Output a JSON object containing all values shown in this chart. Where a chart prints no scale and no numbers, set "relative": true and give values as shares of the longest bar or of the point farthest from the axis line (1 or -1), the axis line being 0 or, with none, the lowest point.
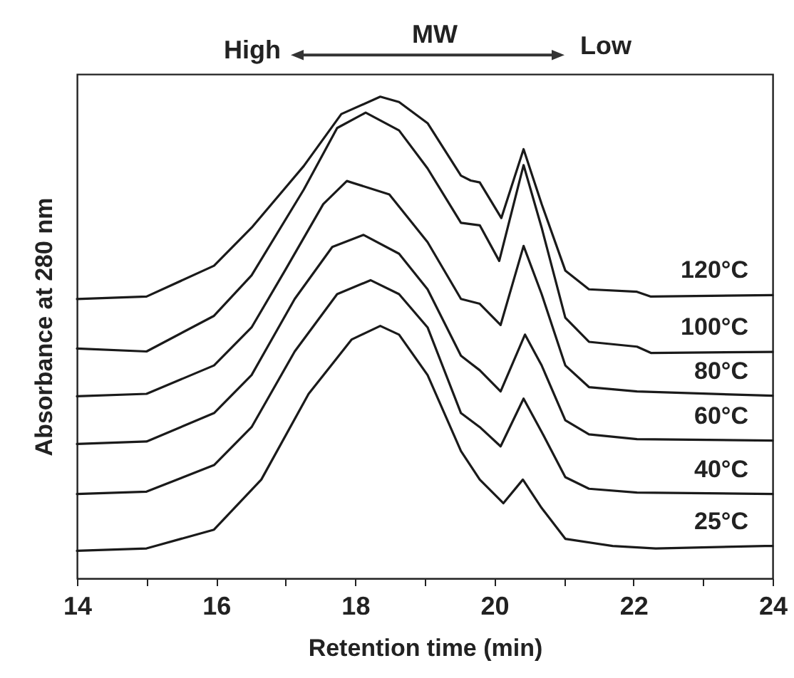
{
  "chart_data": {
    "type": "line",
    "xlabel": "Retention time (min)",
    "ylabel": "Absorbance at 280 nm",
    "annotations": [
      "High",
      "MW",
      "Low"
    ],
    "xlim": [
      14,
      24
    ],
    "xticks": [
      14,
      {
        "value": 15,
        "label": null
      },
      16,
      {
        "value": 17,
        "label": null
      },
      18,
      {
        "value": 19,
        "label": null
      },
      20,
      {
        "value": 21,
        "label": null
      },
      22,
      {
        "value": 23,
        "label": null
      },
      24
    ],
    "relative": true,
    "grid": false,
    "legend": false,
    "marker": "none",
    "line_style": "solid",
    "series": [
      {
        "name": "120°C",
        "color": "#1a1a1a",
        "x": [
          14,
          15.0,
          15.97,
          16.51,
          17.26,
          17.8,
          18.36,
          18.63,
          19.04,
          19.52,
          19.66,
          19.79,
          20.1,
          20.42,
          20.68,
          21.02,
          21.36,
          22.05,
          22.25,
          24
        ],
        "values": [
          0.58,
          0.585,
          0.649,
          0.728,
          0.856,
          0.964,
          1.0,
          0.989,
          0.945,
          0.836,
          0.826,
          0.822,
          0.748,
          0.891,
          0.777,
          0.639,
          0.6,
          0.595,
          0.585,
          0.588
        ]
      },
      {
        "name": "100°C",
        "color": "#1a1a1a",
        "x": [
          14,
          15.0,
          15.97,
          16.51,
          17.26,
          17.74,
          18.15,
          18.63,
          19.04,
          19.52,
          19.79,
          20.07,
          20.42,
          20.68,
          21.02,
          21.36,
          22.05,
          22.25,
          24
        ],
        "values": [
          0.477,
          0.471,
          0.545,
          0.629,
          0.807,
          0.935,
          0.967,
          0.93,
          0.851,
          0.738,
          0.733,
          0.659,
          0.858,
          0.728,
          0.541,
          0.491,
          0.481,
          0.468,
          0.47
        ]
      },
      {
        "name": "80°C",
        "color": "#1a1a1a",
        "x": [
          14,
          15.0,
          15.97,
          16.51,
          16.99,
          17.54,
          17.88,
          18.49,
          19.04,
          19.52,
          19.79,
          20.09,
          20.42,
          20.68,
          21.02,
          21.36,
          22.05,
          24
        ],
        "values": [
          0.378,
          0.383,
          0.442,
          0.521,
          0.639,
          0.777,
          0.825,
          0.797,
          0.698,
          0.58,
          0.57,
          0.526,
          0.69,
          0.59,
          0.442,
          0.397,
          0.388,
          0.379
        ]
      },
      {
        "name": "60°C",
        "color": "#1a1a1a",
        "x": [
          14,
          15.0,
          15.97,
          16.51,
          17.13,
          17.67,
          18.12,
          18.63,
          19.04,
          19.52,
          19.79,
          20.09,
          20.44,
          20.68,
          21.02,
          21.36,
          22.05,
          24
        ],
        "values": [
          0.279,
          0.284,
          0.343,
          0.422,
          0.58,
          0.688,
          0.713,
          0.674,
          0.6,
          0.462,
          0.432,
          0.388,
          0.506,
          0.442,
          0.328,
          0.299,
          0.289,
          0.286
        ]
      },
      {
        "name": "40°C",
        "color": "#1a1a1a",
        "x": [
          14,
          15.0,
          15.97,
          16.51,
          17.13,
          17.74,
          18.22,
          18.63,
          19.04,
          19.52,
          19.79,
          20.09,
          20.42,
          20.68,
          21.02,
          21.36,
          22.05,
          24
        ],
        "values": [
          0.175,
          0.18,
          0.235,
          0.314,
          0.471,
          0.59,
          0.619,
          0.59,
          0.521,
          0.343,
          0.314,
          0.274,
          0.373,
          0.304,
          0.21,
          0.186,
          0.178,
          0.175
        ]
      },
      {
        "name": "25°C",
        "color": "#1a1a1a",
        "x": [
          14,
          15.0,
          15.97,
          16.65,
          17.33,
          17.95,
          18.36,
          18.63,
          19.04,
          19.52,
          19.79,
          20.13,
          20.41,
          20.68,
          21.02,
          21.7,
          22.32,
          23.89,
          24
        ],
        "values": [
          0.057,
          0.062,
          0.101,
          0.205,
          0.383,
          0.496,
          0.524,
          0.506,
          0.422,
          0.264,
          0.205,
          0.156,
          0.205,
          0.146,
          0.082,
          0.067,
          0.062,
          0.067,
          0.067
        ]
      }
    ]
  }
}
